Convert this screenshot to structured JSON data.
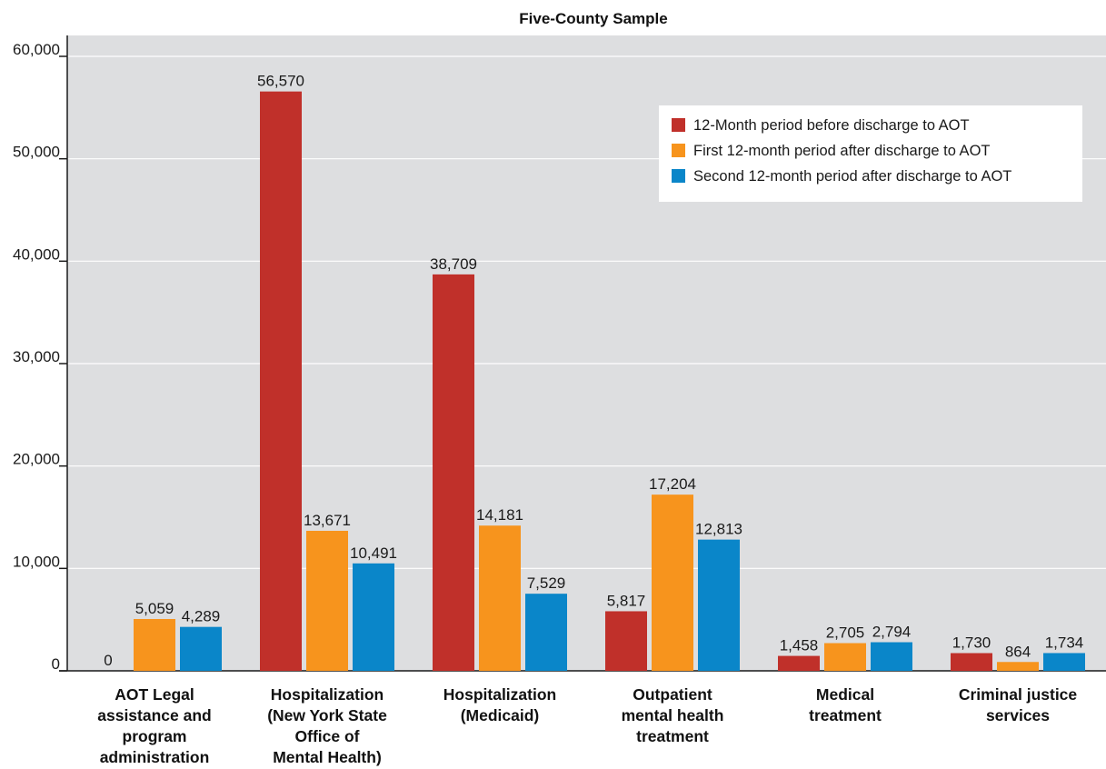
{
  "chart_data": {
    "type": "bar",
    "title": "Five-County Sample",
    "xlabel": "",
    "ylabel": "",
    "ylim": [
      0,
      60000
    ],
    "yticks": [
      0,
      10000,
      20000,
      30000,
      40000,
      50000,
      60000
    ],
    "ytick_labels": [
      "0",
      "10,000",
      "20,000",
      "30,000",
      "40,000",
      "50,000",
      "60,000"
    ],
    "grid": true,
    "legend_position": "top-right",
    "categories": [
      [
        "AOT Legal",
        "assistance and",
        "program",
        "administration"
      ],
      [
        "Hospitalization",
        "(New York State",
        "Office of",
        "Mental Health)"
      ],
      [
        "Hospitalization",
        "(Medicaid)"
      ],
      [
        "Outpatient",
        "mental health",
        "treatment"
      ],
      [
        "Medical",
        "treatment"
      ],
      [
        "Criminal justice",
        "services"
      ]
    ],
    "series": [
      {
        "name": "12-Month period before discharge to AOT",
        "color": "#c0302a",
        "values": [
          0,
          56570,
          38709,
          5817,
          1458,
          1730
        ],
        "labels": [
          "0",
          "56,570",
          "38,709",
          "5,817",
          "1,458",
          "1,730"
        ]
      },
      {
        "name": "First 12-month period after discharge to AOT",
        "color": "#f7941d",
        "values": [
          5059,
          13671,
          14181,
          17204,
          2705,
          864
        ],
        "labels": [
          "5,059",
          "13,671",
          "14,181",
          "17,204",
          "2,705",
          "864"
        ]
      },
      {
        "name": "Second 12-month period after discharge to AOT",
        "color": "#0a86c9",
        "values": [
          4289,
          10491,
          7529,
          12813,
          2794,
          1734
        ],
        "labels": [
          "4,289",
          "10,491",
          "7,529",
          "12,813",
          "2,794",
          "1,734"
        ]
      }
    ]
  },
  "style": {
    "plot_background": "#dddee0",
    "grid_color": "#ffffff",
    "axis_color": "#1a1a1a"
  }
}
